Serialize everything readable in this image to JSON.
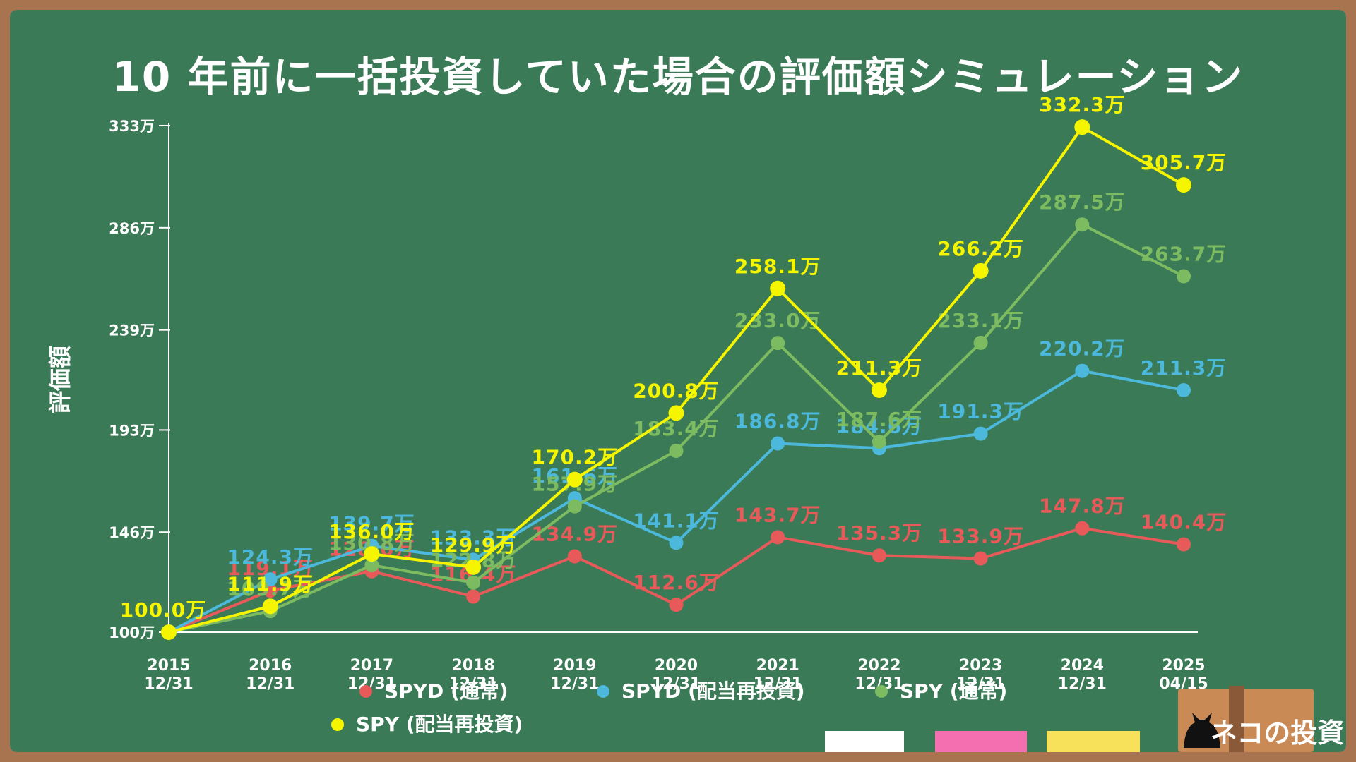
{
  "title": "10 年前に一括投資していた場合の評価額シミュレーション",
  "logo_text": "ネコの投資",
  "colors": {
    "board": "#3b7a57",
    "frame": "#a8744f",
    "axis": "#ffffff",
    "spyd": "#e85a5a",
    "spyd_reinvest": "#4bb8dc",
    "spy": "#7dbb61",
    "spy_reinvest": "#f5f500"
  },
  "chart_data": {
    "type": "line",
    "title": "10 年前に一括投資していた場合の評価額シミュレーション",
    "xlabel": "",
    "ylabel": "評価額",
    "ylim": [
      100,
      333
    ],
    "yticks": [
      100,
      146,
      193,
      239,
      286,
      333
    ],
    "ytick_labels": [
      "100万",
      "146万",
      "193万",
      "239万",
      "286万",
      "333万"
    ],
    "unit_suffix": "万",
    "grid": false,
    "legend_position": "bottom",
    "categories": [
      [
        "2015",
        "12/31"
      ],
      [
        "2016",
        "12/31"
      ],
      [
        "2017",
        "12/31"
      ],
      [
        "2018",
        "12/31"
      ],
      [
        "2019",
        "12/31"
      ],
      [
        "2020",
        "12/31"
      ],
      [
        "2021",
        "12/31"
      ],
      [
        "2022",
        "12/31"
      ],
      [
        "2023",
        "12/31"
      ],
      [
        "2024",
        "12/31"
      ],
      [
        "2025",
        "04/15"
      ]
    ],
    "series": [
      {
        "name": "SPYD (通常)",
        "color": "#e85a5a",
        "values": [
          100.0,
          119.1,
          128.0,
          116.4,
          134.9,
          112.6,
          143.7,
          135.3,
          133.9,
          147.8,
          140.4
        ],
        "labels": [
          "",
          "119.1万",
          "128.0万",
          "116.4万",
          "134.9万",
          "112.6万",
          "143.7万",
          "135.3万",
          "133.9万",
          "147.8万",
          "140.4万"
        ]
      },
      {
        "name": "SPYD (配当再投資)",
        "color": "#4bb8dc",
        "values": [
          100.0,
          124.3,
          139.7,
          133.3,
          161.6,
          141.1,
          186.8,
          184.6,
          191.3,
          220.2,
          211.3
        ],
        "labels": [
          "",
          "124.3万",
          "139.7万",
          "133.3万",
          "161.6万",
          "141.1万",
          "186.8万",
          "184.6万",
          "191.3万",
          "220.2万",
          "211.3万"
        ]
      },
      {
        "name": "SPY (通常)",
        "color": "#7dbb61",
        "values": [
          100.0,
          109.7,
          130.8,
          122.8,
          157.9,
          183.4,
          233.0,
          187.6,
          233.1,
          287.5,
          263.7
        ],
        "labels": [
          "",
          "109.7万",
          "130.8万",
          "122.8万",
          "157.9万",
          "183.4万",
          "233.0万",
          "187.6万",
          "233.1万",
          "287.5万",
          "263.7万"
        ]
      },
      {
        "name": "SPY (配当再投資)",
        "color": "#f5f500",
        "values": [
          100.0,
          111.9,
          136.0,
          129.9,
          170.2,
          200.8,
          258.1,
          211.3,
          266.2,
          332.3,
          305.7
        ],
        "labels": [
          "100.0万",
          "111.9万",
          "136.0万",
          "129.9万",
          "170.2万",
          "200.8万",
          "258.1万",
          "211.3万",
          "266.2万",
          "332.3万",
          "305.7万"
        ]
      }
    ]
  }
}
